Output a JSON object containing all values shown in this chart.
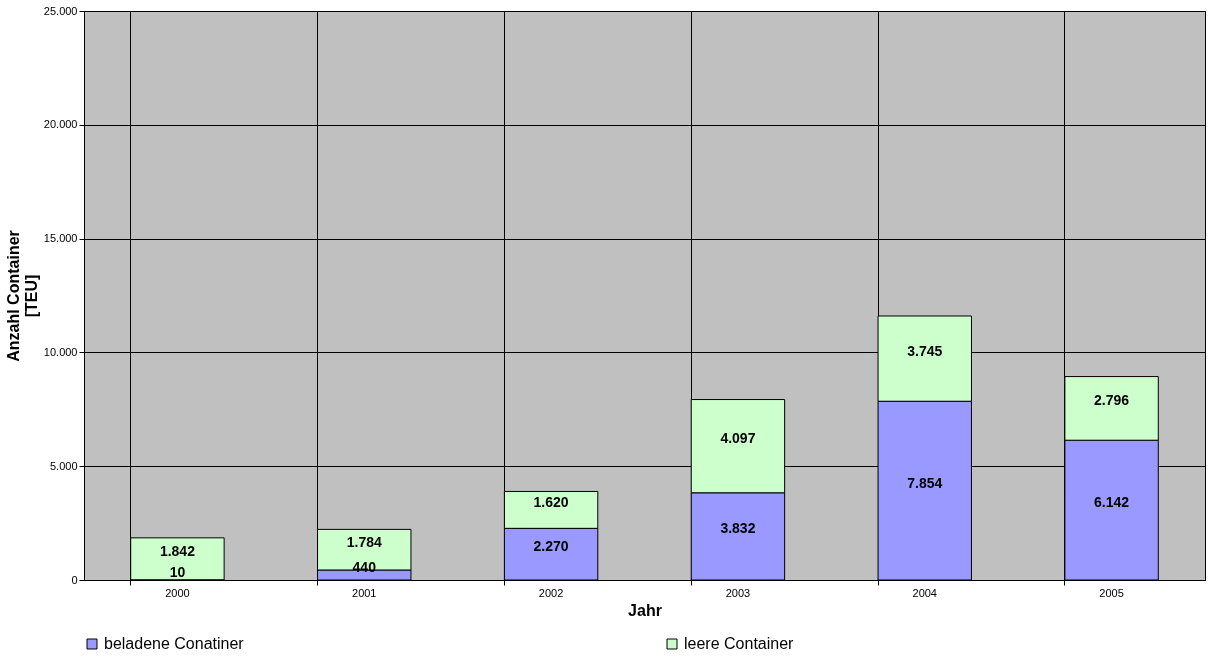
{
  "chart_data": {
    "type": "bar",
    "stacked": true,
    "xlabel": "Jahr",
    "ylabel": "Anzahl Container\n[TEU]",
    "categories": [
      "2000",
      "2001",
      "2002",
      "2003",
      "2004",
      "2005"
    ],
    "series": [
      {
        "name": "beladene Conatiner",
        "color": "#9999ff",
        "values": [
          10,
          440,
          2270,
          3832,
          7854,
          6142
        ],
        "value_labels": [
          "10",
          "440",
          "2.270",
          "3.832",
          "7.854",
          "6.142"
        ]
      },
      {
        "name": "leere Container",
        "color": "#ccffcc",
        "values": [
          1842,
          1784,
          1620,
          4097,
          3745,
          2796
        ],
        "value_labels": [
          "1.842",
          "1.784",
          "1.620",
          "4.097",
          "3.745",
          "2.796"
        ]
      }
    ],
    "ylim": [
      0,
      25000
    ],
    "yticks": [
      {
        "value": 0,
        "label": "0"
      },
      {
        "value": 5000,
        "label": "5.000"
      },
      {
        "value": 10000,
        "label": "10.000"
      },
      {
        "value": 15000,
        "label": "15.000"
      },
      {
        "value": 20000,
        "label": "20.000"
      },
      {
        "value": 25000,
        "label": "25.000"
      }
    ],
    "grid": true,
    "legend": "bottom"
  }
}
